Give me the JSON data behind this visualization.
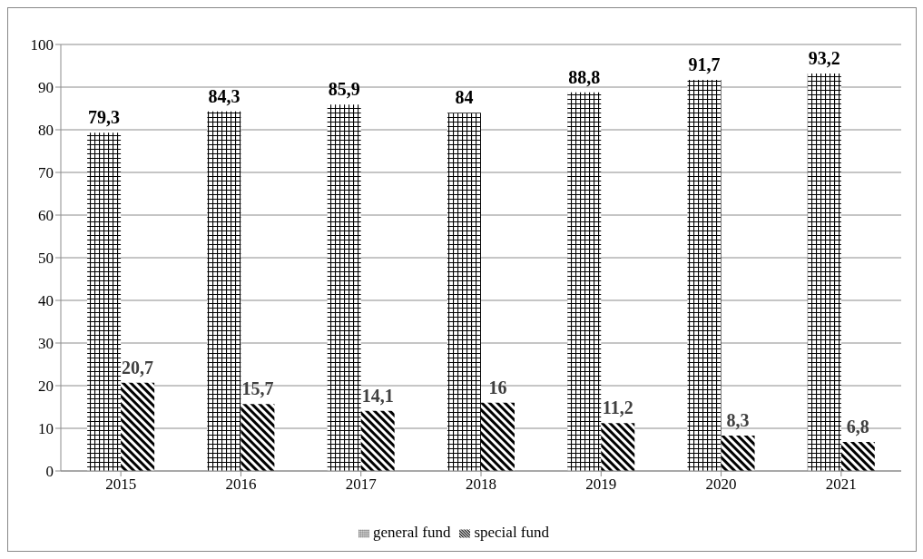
{
  "chart_data": {
    "type": "bar",
    "categories": [
      "2015",
      "2016",
      "2017",
      "2018",
      "2019",
      "2020",
      "2021"
    ],
    "series": [
      {
        "name": "general fund",
        "color": "#000000",
        "values": [
          79.3,
          84.3,
          85.9,
          84,
          88.8,
          91.7,
          93.2
        ],
        "value_labels": [
          "79,3",
          "84,3",
          "85,9",
          "84",
          "88,8",
          "91,7",
          "93,2"
        ]
      },
      {
        "name": "special fund",
        "color": "#000000",
        "values": [
          20.7,
          15.7,
          14.1,
          16,
          11.2,
          8.3,
          6.8
        ],
        "value_labels": [
          "20,7",
          "15,7",
          "14,1",
          "16",
          "11,2",
          "8,3",
          "6,8"
        ]
      }
    ],
    "ylim": [
      0,
      100
    ],
    "yticks": [
      0,
      10,
      20,
      30,
      40,
      50,
      60,
      70,
      80,
      90,
      100
    ],
    "grid": "y",
    "legend": "bottom"
  }
}
